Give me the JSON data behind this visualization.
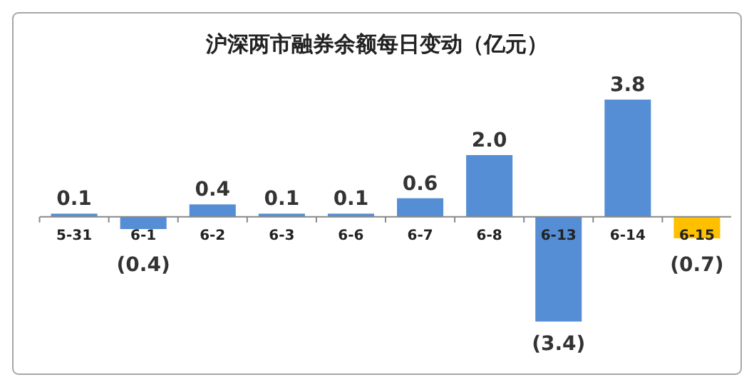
{
  "chart_data": {
    "type": "bar",
    "title": "沪深两市融券余额每日变动（亿元）",
    "categories": [
      "5-31",
      "6-1",
      "6-2",
      "6-3",
      "6-6",
      "6-7",
      "6-8",
      "6-13",
      "6-14",
      "6-15"
    ],
    "values": [
      0.1,
      -0.4,
      0.4,
      0.1,
      0.1,
      0.6,
      2.0,
      -3.4,
      3.8,
      -0.7
    ],
    "value_labels": [
      "0.1",
      "(0.4)",
      "0.4",
      "0.1",
      "0.1",
      "0.6",
      "2.0",
      "(3.4)",
      "3.8",
      "(0.7)"
    ],
    "colors": [
      "#558ed5",
      "#558ed5",
      "#558ed5",
      "#558ed5",
      "#558ed5",
      "#558ed5",
      "#558ed5",
      "#558ed5",
      "#558ed5",
      "#ffc000"
    ],
    "grid": false
  }
}
